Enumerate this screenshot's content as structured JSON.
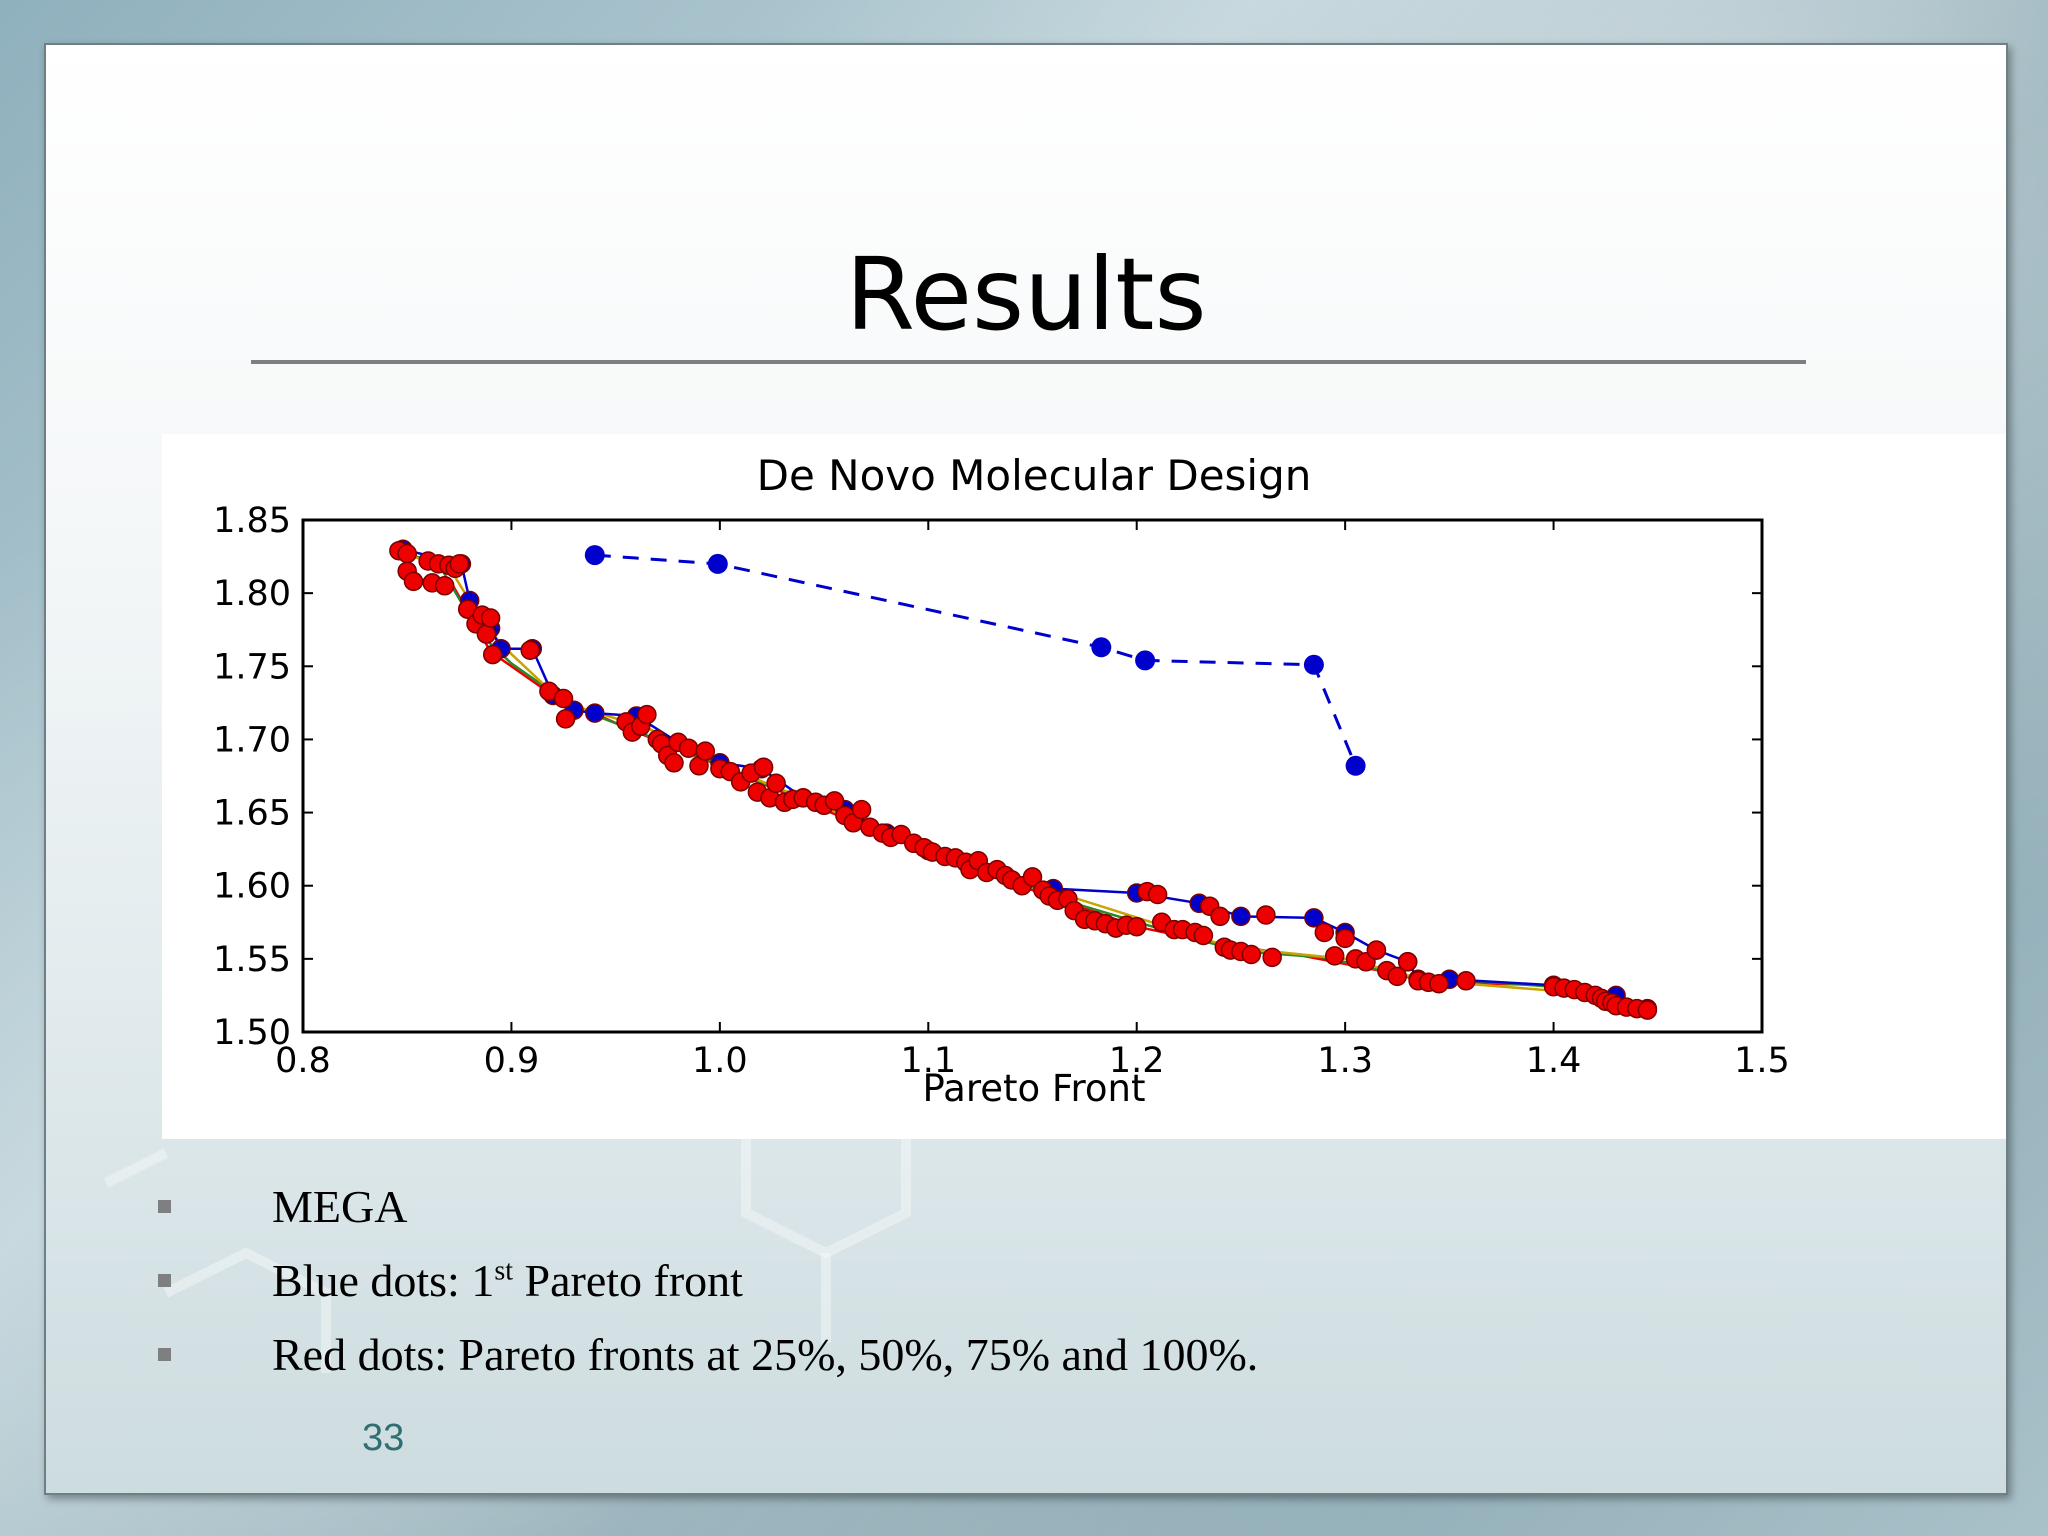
{
  "slide": {
    "title": "Results",
    "page_number": "33",
    "bullets": [
      {
        "text": "MEGA"
      },
      {
        "pre": "Blue dots: 1",
        "sup": "st",
        "post": " Pareto front"
      },
      {
        "text": "Red dots: Pareto fronts at 25%, 50%, 75% and 100%."
      }
    ]
  },
  "chart_data": {
    "type": "scatter",
    "title": "De Novo Molecular Design",
    "xlabel": "Pareto Front",
    "ylabel": "",
    "xlim": [
      0.8,
      1.5
    ],
    "ylim": [
      1.5,
      1.85
    ],
    "xticks": [
      "0.8",
      "0.9",
      "1.0",
      "1.1",
      "1.2",
      "1.3",
      "1.4",
      "1.5"
    ],
    "yticks": [
      "1.50",
      "1.55",
      "1.60",
      "1.65",
      "1.70",
      "1.75",
      "1.80",
      "1.85"
    ],
    "grid": false,
    "legend": "none",
    "series": [
      {
        "color": "#0000cc",
        "marker": "circle",
        "line": "dashed",
        "points": [
          [
            0.94,
            1.826
          ],
          [
            0.999,
            1.82
          ],
          [
            1.183,
            1.763
          ],
          [
            1.204,
            1.754
          ],
          [
            1.285,
            1.751
          ],
          [
            1.305,
            1.682
          ]
        ]
      },
      {
        "color": "#0000cc",
        "marker": "circle",
        "line": "solid",
        "points": [
          [
            0.848,
            1.83
          ],
          [
            0.876,
            1.82
          ],
          [
            0.88,
            1.795
          ],
          [
            0.89,
            1.776
          ],
          [
            0.895,
            1.762
          ],
          [
            0.91,
            1.762
          ],
          [
            0.92,
            1.73
          ],
          [
            0.93,
            1.72
          ],
          [
            0.94,
            1.718
          ],
          [
            0.96,
            1.716
          ],
          [
            0.98,
            1.698
          ],
          [
            1.0,
            1.684
          ],
          [
            1.02,
            1.68
          ],
          [
            1.04,
            1.66
          ],
          [
            1.06,
            1.652
          ],
          [
            1.08,
            1.636
          ],
          [
            1.1,
            1.624
          ],
          [
            1.12,
            1.614
          ],
          [
            1.14,
            1.604
          ],
          [
            1.16,
            1.598
          ],
          [
            1.2,
            1.595
          ],
          [
            1.23,
            1.588
          ],
          [
            1.25,
            1.579
          ],
          [
            1.285,
            1.578
          ],
          [
            1.3,
            1.568
          ],
          [
            1.315,
            1.556
          ],
          [
            1.33,
            1.548
          ],
          [
            1.335,
            1.536
          ],
          [
            1.35,
            1.536
          ],
          [
            1.4,
            1.532
          ],
          [
            1.43,
            1.525
          ],
          [
            1.445,
            1.516
          ]
        ]
      },
      {
        "color": "#ee0000",
        "marker": "circle",
        "line": "solid",
        "points": [
          [
            0.846,
            1.829
          ],
          [
            0.85,
            1.827
          ],
          [
            0.85,
            1.815
          ],
          [
            0.853,
            1.808
          ],
          [
            0.86,
            1.822
          ],
          [
            0.862,
            1.807
          ],
          [
            0.865,
            1.82
          ],
          [
            0.868,
            1.805
          ],
          [
            0.87,
            1.819
          ],
          [
            0.873,
            1.817
          ],
          [
            0.875,
            1.82
          ],
          [
            0.879,
            1.789
          ],
          [
            0.883,
            1.779
          ],
          [
            0.886,
            1.785
          ],
          [
            0.888,
            1.772
          ],
          [
            0.89,
            1.783
          ],
          [
            0.891,
            1.758
          ],
          [
            0.909,
            1.761
          ],
          [
            0.918,
            1.733
          ],
          [
            0.925,
            1.728
          ],
          [
            0.926,
            1.714
          ],
          [
            0.955,
            1.712
          ],
          [
            0.958,
            1.705
          ],
          [
            0.962,
            1.709
          ],
          [
            0.965,
            1.717
          ],
          [
            0.97,
            1.7
          ],
          [
            0.972,
            1.697
          ],
          [
            0.975,
            1.689
          ],
          [
            0.978,
            1.684
          ],
          [
            0.98,
            1.698
          ],
          [
            0.985,
            1.694
          ],
          [
            0.99,
            1.682
          ],
          [
            0.993,
            1.692
          ],
          [
            1.0,
            1.68
          ],
          [
            1.005,
            1.678
          ],
          [
            1.01,
            1.671
          ],
          [
            1.015,
            1.677
          ],
          [
            1.018,
            1.664
          ],
          [
            1.021,
            1.681
          ],
          [
            1.024,
            1.66
          ],
          [
            1.027,
            1.67
          ],
          [
            1.031,
            1.657
          ],
          [
            1.035,
            1.659
          ],
          [
            1.04,
            1.66
          ],
          [
            1.046,
            1.657
          ],
          [
            1.05,
            1.655
          ],
          [
            1.055,
            1.658
          ],
          [
            1.06,
            1.648
          ],
          [
            1.064,
            1.643
          ],
          [
            1.068,
            1.652
          ],
          [
            1.072,
            1.64
          ],
          [
            1.078,
            1.636
          ],
          [
            1.082,
            1.633
          ],
          [
            1.087,
            1.635
          ],
          [
            1.093,
            1.629
          ],
          [
            1.098,
            1.626
          ],
          [
            1.102,
            1.623
          ],
          [
            1.108,
            1.62
          ],
          [
            1.113,
            1.619
          ],
          [
            1.118,
            1.616
          ],
          [
            1.12,
            1.611
          ],
          [
            1.124,
            1.617
          ],
          [
            1.128,
            1.609
          ],
          [
            1.133,
            1.611
          ],
          [
            1.137,
            1.607
          ],
          [
            1.14,
            1.604
          ],
          [
            1.145,
            1.6
          ],
          [
            1.15,
            1.606
          ],
          [
            1.155,
            1.597
          ],
          [
            1.158,
            1.593
          ],
          [
            1.162,
            1.59
          ],
          [
            1.167,
            1.591
          ],
          [
            1.17,
            1.583
          ],
          [
            1.175,
            1.577
          ],
          [
            1.18,
            1.576
          ],
          [
            1.185,
            1.574
          ],
          [
            1.19,
            1.571
          ],
          [
            1.195,
            1.573
          ],
          [
            1.2,
            1.572
          ],
          [
            1.205,
            1.596
          ],
          [
            1.21,
            1.594
          ],
          [
            1.212,
            1.575
          ],
          [
            1.218,
            1.57
          ],
          [
            1.222,
            1.57
          ],
          [
            1.228,
            1.568
          ],
          [
            1.232,
            1.566
          ],
          [
            1.235,
            1.586
          ],
          [
            1.24,
            1.579
          ],
          [
            1.242,
            1.558
          ],
          [
            1.245,
            1.556
          ],
          [
            1.25,
            1.555
          ],
          [
            1.255,
            1.553
          ],
          [
            1.262,
            1.58
          ],
          [
            1.265,
            1.551
          ],
          [
            1.29,
            1.568
          ],
          [
            1.295,
            1.552
          ],
          [
            1.3,
            1.564
          ],
          [
            1.305,
            1.55
          ],
          [
            1.31,
            1.548
          ],
          [
            1.315,
            1.556
          ],
          [
            1.32,
            1.542
          ],
          [
            1.325,
            1.538
          ],
          [
            1.33,
            1.548
          ],
          [
            1.335,
            1.535
          ],
          [
            1.34,
            1.534
          ],
          [
            1.345,
            1.533
          ],
          [
            1.358,
            1.535
          ],
          [
            1.4,
            1.531
          ],
          [
            1.405,
            1.53
          ],
          [
            1.41,
            1.529
          ],
          [
            1.415,
            1.527
          ],
          [
            1.42,
            1.525
          ],
          [
            1.423,
            1.523
          ],
          [
            1.425,
            1.521
          ],
          [
            1.428,
            1.52
          ],
          [
            1.43,
            1.518
          ],
          [
            1.435,
            1.517
          ],
          [
            1.44,
            1.516
          ],
          [
            1.445,
            1.515
          ]
        ]
      }
    ],
    "fronts": [
      {
        "color": "#ee0000",
        "points": [
          [
            0.846,
            1.829
          ],
          [
            0.855,
            1.81
          ],
          [
            0.872,
            1.805
          ],
          [
            0.88,
            1.785
          ],
          [
            0.89,
            1.76
          ],
          [
            0.92,
            1.73
          ],
          [
            0.96,
            1.705
          ],
          [
            1.0,
            1.682
          ],
          [
            1.04,
            1.658
          ],
          [
            1.08,
            1.634
          ],
          [
            1.12,
            1.612
          ],
          [
            1.16,
            1.592
          ],
          [
            1.2,
            1.572
          ],
          [
            1.24,
            1.56
          ],
          [
            1.28,
            1.552
          ],
          [
            1.32,
            1.541
          ],
          [
            1.34,
            1.534
          ],
          [
            1.4,
            1.532
          ],
          [
            1.445,
            1.515
          ]
        ]
      },
      {
        "color": "#2a8a2a",
        "points": [
          [
            0.848,
            1.828
          ],
          [
            0.865,
            1.82
          ],
          [
            0.875,
            1.796
          ],
          [
            0.885,
            1.772
          ],
          [
            0.9,
            1.752
          ],
          [
            0.93,
            1.722
          ],
          [
            0.97,
            1.7
          ],
          [
            1.01,
            1.676
          ],
          [
            1.05,
            1.654
          ],
          [
            1.09,
            1.63
          ],
          [
            1.13,
            1.61
          ],
          [
            1.17,
            1.588
          ],
          [
            1.21,
            1.571
          ],
          [
            1.25,
            1.555
          ],
          [
            1.29,
            1.551
          ],
          [
            1.33,
            1.538
          ],
          [
            1.4,
            1.531
          ],
          [
            1.445,
            1.516
          ]
        ]
      },
      {
        "color": "#c9a400",
        "points": [
          [
            0.85,
            1.826
          ],
          [
            0.87,
            1.818
          ],
          [
            0.882,
            1.79
          ],
          [
            0.895,
            1.765
          ],
          [
            0.925,
            1.725
          ],
          [
            0.965,
            1.708
          ],
          [
            1.005,
            1.68
          ],
          [
            1.045,
            1.657
          ],
          [
            1.085,
            1.634
          ],
          [
            1.125,
            1.613
          ],
          [
            1.165,
            1.594
          ],
          [
            1.205,
            1.576
          ],
          [
            1.245,
            1.558
          ],
          [
            1.3,
            1.55
          ],
          [
            1.34,
            1.535
          ],
          [
            1.42,
            1.526
          ],
          [
            1.445,
            1.515
          ]
        ]
      }
    ]
  }
}
